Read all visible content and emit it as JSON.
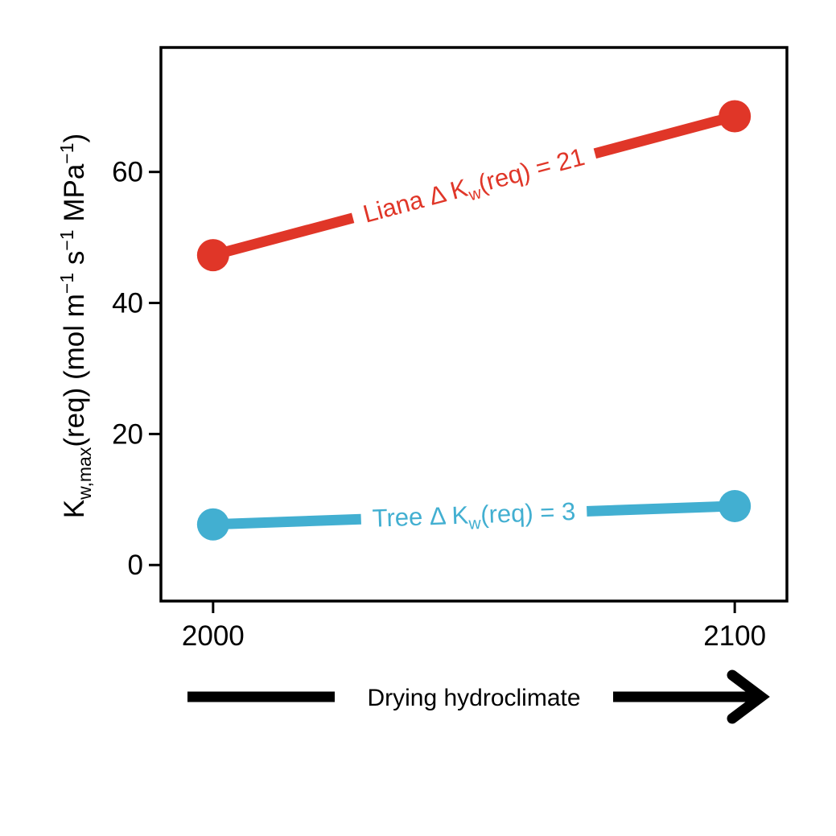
{
  "chart_data": {
    "type": "line",
    "x": [
      2000,
      2100
    ],
    "xticks": [
      "2000",
      "2100"
    ],
    "xlim": [
      1990,
      2110
    ],
    "yticks": [
      "0",
      "20",
      "40",
      "60"
    ],
    "ylim": [
      -5.5,
      79
    ],
    "ylabel": {
      "main": "K",
      "sub": "w,max",
      "tail": "(req)  (mol m",
      "sup1": "−1",
      "mid": " s",
      "sup2": "−1",
      "mid2": " MPa",
      "sup3": "−1",
      "close": ")"
    },
    "xlabel_arrow": "Drying hydroclimate",
    "series": [
      {
        "name": "Liana",
        "values": [
          47.3,
          68.5
        ],
        "color": "#e03628",
        "annotation": {
          "prefix": "Liana  Δ K",
          "sub": "w",
          "suffix": "(req) = 21"
        }
      },
      {
        "name": "Tree",
        "values": [
          6.2,
          9.0
        ],
        "color": "#42afd1",
        "annotation": {
          "prefix": "Tree  Δ K",
          "sub": "w",
          "suffix": "(req) = 3"
        }
      }
    ],
    "grid": false,
    "legend": "none"
  }
}
